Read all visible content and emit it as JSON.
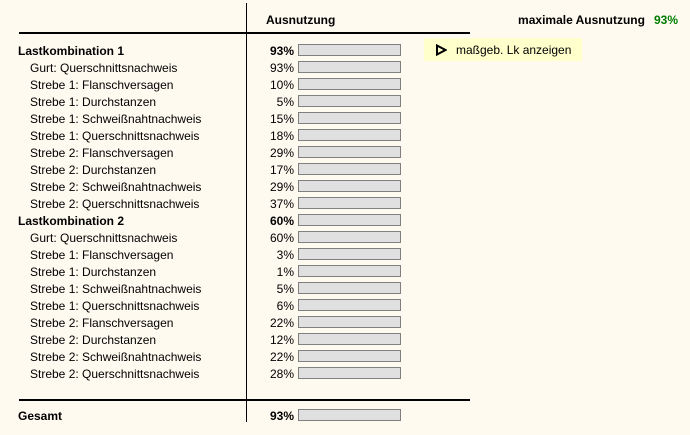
{
  "header": {
    "utilization_column_label": "Ausnutzung",
    "max_utilization_label": "maximale Ausnutzung",
    "max_utilization_value": "93%"
  },
  "button": {
    "label": "maßgeb. Lk anzeigen",
    "icon": "play-triangle-icon",
    "background_color": "#ffffcc"
  },
  "rows": [
    {
      "label": "Lastkombination 1",
      "value": 93,
      "bold": true,
      "indent": false
    },
    {
      "label": "Gurt: Querschnittsnachweis",
      "value": 93,
      "bold": false,
      "indent": true
    },
    {
      "label": "Strebe 1: Flanschversagen",
      "value": 10,
      "bold": false,
      "indent": true
    },
    {
      "label": "Strebe 1: Durchstanzen",
      "value": 5,
      "bold": false,
      "indent": true
    },
    {
      "label": "Strebe 1: Schweißnahtnachweis",
      "value": 15,
      "bold": false,
      "indent": true
    },
    {
      "label": "Strebe 1: Querschnittsnachweis",
      "value": 18,
      "bold": false,
      "indent": true
    },
    {
      "label": "Strebe 2: Flanschversagen",
      "value": 29,
      "bold": false,
      "indent": true
    },
    {
      "label": "Strebe 2: Durchstanzen",
      "value": 17,
      "bold": false,
      "indent": true
    },
    {
      "label": "Strebe 2: Schweißnahtnachweis",
      "value": 29,
      "bold": false,
      "indent": true
    },
    {
      "label": "Strebe 2: Querschnittsnachweis",
      "value": 37,
      "bold": false,
      "indent": true
    },
    {
      "label": "Lastkombination 2",
      "value": 60,
      "bold": true,
      "indent": false
    },
    {
      "label": "Gurt: Querschnittsnachweis",
      "value": 60,
      "bold": false,
      "indent": true
    },
    {
      "label": "Strebe 1: Flanschversagen",
      "value": 3,
      "bold": false,
      "indent": true
    },
    {
      "label": "Strebe 1: Durchstanzen",
      "value": 1,
      "bold": false,
      "indent": true
    },
    {
      "label": "Strebe 1: Schweißnahtnachweis",
      "value": 5,
      "bold": false,
      "indent": true
    },
    {
      "label": "Strebe 1: Querschnittsnachweis",
      "value": 6,
      "bold": false,
      "indent": true
    },
    {
      "label": "Strebe 2: Flanschversagen",
      "value": 22,
      "bold": false,
      "indent": true
    },
    {
      "label": "Strebe 2: Durchstanzen",
      "value": 12,
      "bold": false,
      "indent": true
    },
    {
      "label": "Strebe 2: Schweißnahtnachweis",
      "value": 22,
      "bold": false,
      "indent": true
    },
    {
      "label": "Strebe 2: Querschnittsnachweis",
      "value": 28,
      "bold": false,
      "indent": true
    }
  ],
  "footer": {
    "label": "Gesamt",
    "value": 93,
    "value_label": "93%"
  },
  "colors": {
    "background": "#fffaf0",
    "bar_track": "#e0e0e0",
    "bar_track_border": "#808080",
    "bar_fill_green": "#00b800",
    "accent_green_text": "#007d00",
    "divider": "#000000"
  }
}
